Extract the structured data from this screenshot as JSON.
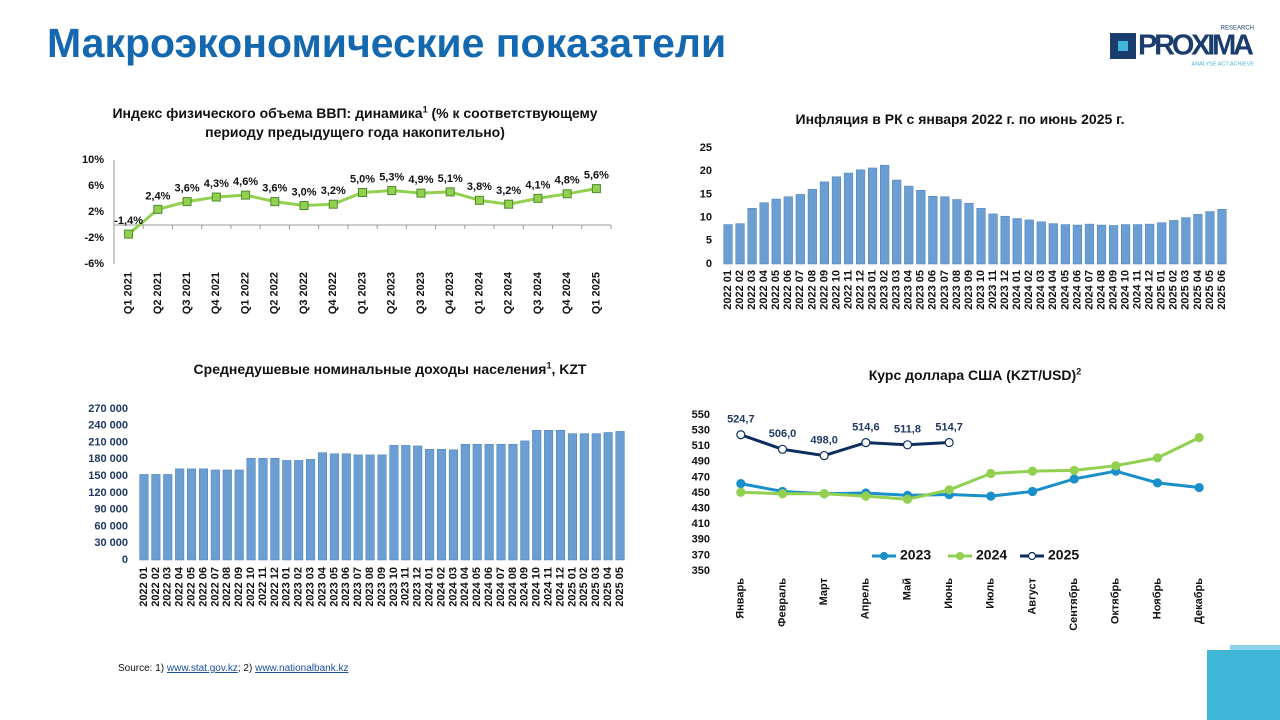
{
  "header": {
    "title": "Макроэкономические показатели"
  },
  "logo": {
    "name": "PROXIMA",
    "top": "RESEARCH",
    "tagline": "ANALYSE   ACT   ACHIEVE"
  },
  "source": {
    "prefix": "Source: 1)",
    "link1": "www.stat.gov.kz",
    "separator": "; 2)",
    "link2": "www.nationalbank.kz"
  },
  "chart_data": [
    {
      "type": "line",
      "title": "Индекс физического объема ВВП: динамика",
      "title_sup": "1",
      "title_cont": "(% к соответствующему периоду предыдущего года накопительно)",
      "categories": [
        "Q1 2021",
        "Q2 2021",
        "Q3 2021",
        "Q4 2021",
        "Q1 2022",
        "Q2 2022",
        "Q3 2022",
        "Q4 2022",
        "Q1 2023",
        "Q2 2023",
        "Q3 2023",
        "Q4 2023",
        "Q1 2024",
        "Q2 2024",
        "Q3 2024",
        "Q4 2024",
        "Q1 2025"
      ],
      "values": [
        -1.4,
        2.4,
        3.6,
        4.3,
        4.6,
        3.6,
        3.0,
        3.2,
        5.0,
        5.3,
        4.9,
        5.1,
        3.8,
        3.2,
        4.1,
        4.8,
        5.6
      ],
      "value_labels": [
        "-1,4%",
        "2,4%",
        "3,6%",
        "4,3%",
        "4,6%",
        "3,6%",
        "3,0%",
        "3,2%",
        "5,0%",
        "5,3%",
        "4,9%",
        "5,1%",
        "3,8%",
        "3,2%",
        "4,1%",
        "4,8%",
        "5,6%"
      ],
      "color": "#92d050",
      "marker_stroke": "#4e8a2a",
      "ylim": [
        -6,
        10
      ],
      "yticks": [
        {
          "value": 10,
          "label": "10%"
        },
        {
          "value": 6,
          "label": "6%"
        },
        {
          "value": 2,
          "label": "2%"
        },
        {
          "value": -2,
          "label": "-2%"
        },
        {
          "value": -6,
          "label": "-6%"
        }
      ],
      "grid": false
    },
    {
      "type": "bar",
      "title": "Инфляция в РК с января 2022 г. по июнь 2025 г.",
      "categories": [
        "2022 01",
        "2022 02",
        "2022 03",
        "2022 04",
        "2022 05",
        "2022 06",
        "2022 07",
        "2022 08",
        "2022 09",
        "2022 10",
        "2022 11",
        "2022 12",
        "2023 01",
        "2023 02",
        "2023 03",
        "2023 04",
        "2023 05",
        "2023 06",
        "2023 07",
        "2023 08",
        "2023 09",
        "2023 10",
        "2023 11",
        "2023 12",
        "2024 01",
        "2024 02",
        "2024 03",
        "2024 04",
        "2024 05",
        "2024 06",
        "2024 07",
        "2024 08",
        "2024 09",
        "2024 10",
        "2024 11",
        "2024 12",
        "2025 01",
        "2025 02",
        "2025 03",
        "2025 04",
        "2025 05",
        "2025 06"
      ],
      "values": [
        8.5,
        8.7,
        12.0,
        13.2,
        14.0,
        14.5,
        15.0,
        16.1,
        17.7,
        18.8,
        19.6,
        20.3,
        20.7,
        21.3,
        18.1,
        16.8,
        15.9,
        14.6,
        14.5,
        13.9,
        13.1,
        12.0,
        10.8,
        10.3,
        9.8,
        9.5,
        9.1,
        8.7,
        8.5,
        8.4,
        8.6,
        8.4,
        8.3,
        8.5,
        8.5,
        8.6,
        8.9,
        9.4,
        10.0,
        10.7,
        11.3,
        11.8
      ],
      "color": "#6b9fd3",
      "ylim": [
        0,
        25
      ],
      "yticks": [
        0,
        5,
        10,
        15,
        20,
        25
      ],
      "grid": false
    },
    {
      "type": "bar",
      "title": "Среднедушевые номинальные доходы населения",
      "title_sup": "1",
      "title_cont": ", KZT",
      "categories": [
        "2022 01",
        "2022 02",
        "2022 03",
        "2022 04",
        "2022 05",
        "2022 06",
        "2022 07",
        "2022 08",
        "2022 09",
        "2022 10",
        "2022 11",
        "2022 12",
        "2023 01",
        "2023 02",
        "2023 03",
        "2023 04",
        "2023 05",
        "2023 06",
        "2023 07",
        "2023 08",
        "2023 09",
        "2023 10",
        "2023 11",
        "2023 12",
        "2024 01",
        "2024 02",
        "2024 03",
        "2024 04",
        "2024 05",
        "2024 06",
        "2024 07",
        "2024 08",
        "2024 09",
        "2024 10",
        "2024 11",
        "2024 12",
        "2025 01",
        "2025 02",
        "2025 03",
        "2025 04",
        "2025 05"
      ],
      "values": [
        153000,
        153000,
        153000,
        163000,
        163000,
        163000,
        161000,
        161000,
        161000,
        182000,
        182000,
        182000,
        178000,
        178000,
        180000,
        192000,
        190000,
        190000,
        188000,
        188000,
        188000,
        205000,
        205000,
        204000,
        198000,
        198000,
        197000,
        207000,
        207000,
        207000,
        207000,
        207000,
        213000,
        232000,
        232000,
        232000,
        226000,
        226000,
        226000,
        228000,
        230000
      ],
      "color": "#6b9fd3",
      "ylim": [
        0,
        270000
      ],
      "yticks": [
        {
          "value": 0,
          "label": "0"
        },
        {
          "value": 30000,
          "label": "30 000"
        },
        {
          "value": 60000,
          "label": "60 000"
        },
        {
          "value": 90000,
          "label": "90 000"
        },
        {
          "value": 120000,
          "label": "120 000"
        },
        {
          "value": 150000,
          "label": "150 000"
        },
        {
          "value": 180000,
          "label": "180 000"
        },
        {
          "value": 210000,
          "label": "210 000"
        },
        {
          "value": 240000,
          "label": "240 000"
        },
        {
          "value": 270000,
          "label": "270 000"
        }
      ],
      "grid": false
    },
    {
      "type": "line",
      "title": "Курс доллара США (KZT/USD)",
      "title_sup": "2",
      "categories": [
        "Январь",
        "Февраль",
        "Март",
        "Апрель",
        "Май",
        "Июнь",
        "Июль",
        "Август",
        "Сентябрь",
        "Октябрь",
        "Ноябрь",
        "Декабрь"
      ],
      "series": [
        {
          "name": "2023",
          "color": "#1a8fc9",
          "marker_fill": "#1a8fc9",
          "values": [
            462,
            452,
            449,
            450,
            447,
            448,
            446,
            452,
            468,
            478,
            463,
            457
          ]
        },
        {
          "name": "2024",
          "color": "#92d050",
          "marker_fill": "#92d050",
          "values": [
            451,
            449,
            449,
            446,
            442,
            454,
            475,
            478,
            479,
            485,
            495,
            521
          ]
        },
        {
          "name": "2025",
          "color": "#0c2d5e",
          "marker_fill": "#ffffff",
          "values": [
            524.7,
            506.0,
            498.0,
            514.6,
            511.8,
            514.7,
            null,
            null,
            null,
            null,
            null,
            null
          ],
          "value_labels": [
            "524,7",
            "506,0",
            "498,0",
            "514,6",
            "511,8",
            "514,7",
            null,
            null,
            null,
            null,
            null,
            null
          ]
        }
      ],
      "ylim": [
        350,
        550
      ],
      "yticks": [
        350,
        370,
        390,
        410,
        430,
        450,
        470,
        490,
        510,
        530,
        550
      ],
      "grid": false,
      "legend": "bottom"
    }
  ]
}
